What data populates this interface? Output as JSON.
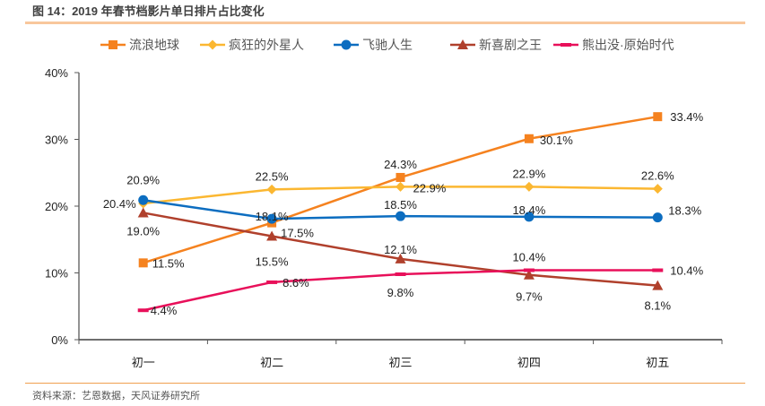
{
  "figure": {
    "title": "图 14：2019 年春节档影片单日排片占比变化",
    "source": "资料来源：艺恩数据，天风证券研究所"
  },
  "chart_data": {
    "type": "line",
    "title": "图 14：2019 年春节档影片单日排片占比变化",
    "xlabel": "",
    "ylabel": "",
    "categories": [
      "初一",
      "初二",
      "初三",
      "初四",
      "初五"
    ],
    "ylim": [
      0,
      40
    ],
    "yticks": [
      0,
      10,
      20,
      30,
      40
    ],
    "ytick_labels": [
      "0%",
      "10%",
      "20%",
      "30%",
      "40%"
    ],
    "grid": false,
    "legend_position": "top",
    "value_suffix": "%",
    "series": [
      {
        "name": "流浪地球",
        "color": "#f5821f",
        "marker": "square",
        "values": [
          11.5,
          17.5,
          24.3,
          30.1,
          33.4
        ],
        "labels": [
          "11.5%",
          "17.5%",
          "24.3%",
          "30.1%",
          "33.4%"
        ]
      },
      {
        "name": "疯狂的外星人",
        "color": "#fbb731",
        "marker": "diamond",
        "values": [
          20.4,
          22.5,
          22.9,
          22.9,
          22.6
        ],
        "labels": [
          "20.4%",
          "22.5%",
          "22.9%",
          "22.9%",
          "22.6%"
        ]
      },
      {
        "name": "飞驰人生",
        "color": "#0c6dc0",
        "marker": "circle",
        "values": [
          20.9,
          18.1,
          18.5,
          18.4,
          18.3
        ],
        "labels": [
          "20.9%",
          "18.1%",
          "18.5%",
          "18.4%",
          "18.3%"
        ]
      },
      {
        "name": "新喜剧之王",
        "color": "#b0402c",
        "marker": "triangle",
        "values": [
          19.0,
          15.5,
          12.1,
          9.7,
          8.1
        ],
        "labels": [
          "19.0%",
          "15.5%",
          "12.1%",
          "9.7%",
          "8.1%"
        ]
      },
      {
        "name": "熊出没·原始时代",
        "color": "#e8105a",
        "marker": "dash",
        "values": [
          4.4,
          8.6,
          9.8,
          10.4,
          10.4
        ],
        "labels": [
          "4.4%",
          "8.6%",
          "9.8%",
          "10.4%",
          "10.4%"
        ]
      }
    ]
  }
}
